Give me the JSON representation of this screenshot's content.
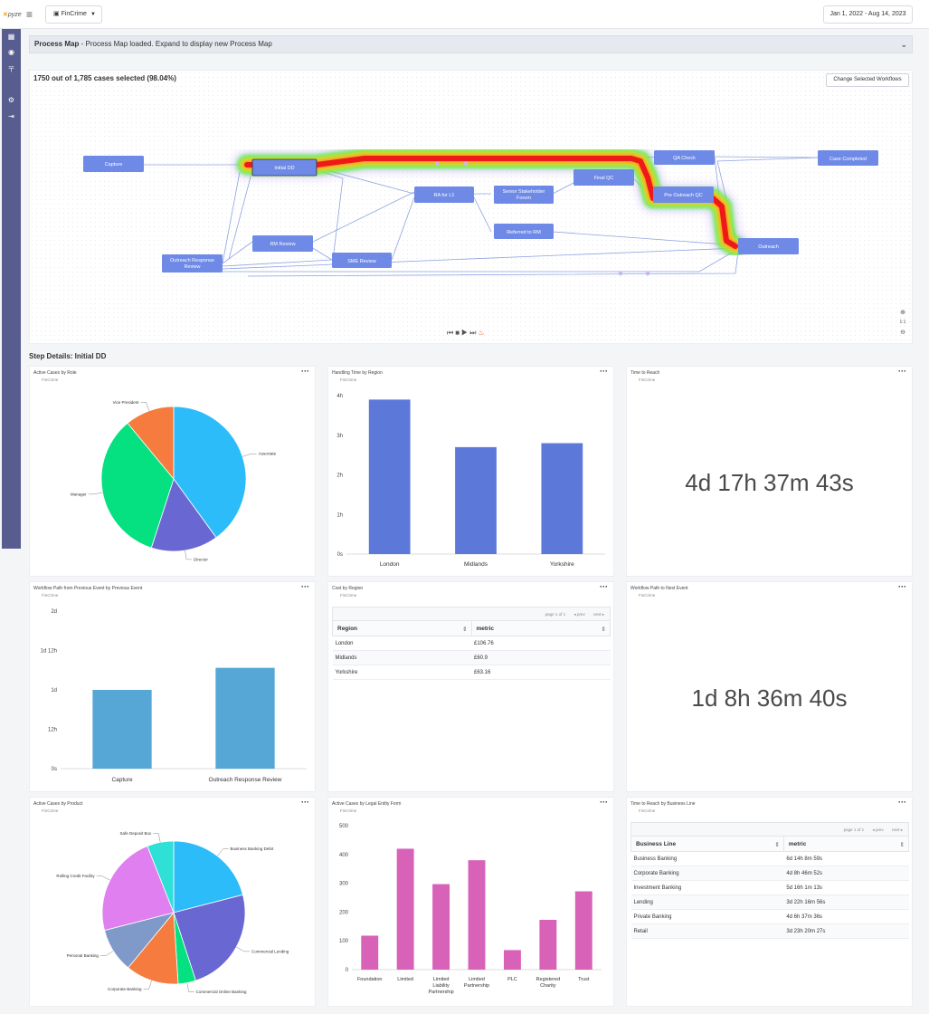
{
  "app": {
    "logo_main": "pyze",
    "workspace": "FinCrime",
    "date_range": "Jan 1, 2022 - Aug 14, 2023"
  },
  "process_map": {
    "title": "Process Map",
    "separator": "-",
    "subtitle": "Process Map loaded. Expand to display new Process Map",
    "selection_text": "1750 out of 1,785 cases selected (98.04%)",
    "change_button": "Change Selected Workflows",
    "zoom_label": "1:1",
    "nodes": [
      "Capture",
      "Initial DD",
      "QA Check",
      "Case Completed",
      "Final QC",
      "Senior Stakeholder Forum",
      "RA for L1",
      "Pre Outreach QC",
      "Referred to RM",
      "RM Review",
      "Outreach",
      "Outreach Response Review",
      "SME Review"
    ]
  },
  "step_details_title": "Step Details: Initial DD",
  "card_subtitle": "FinCrime",
  "cards": {
    "active_by_role": {
      "title": "Active Cases by Role",
      "chart_data": {
        "type": "pie",
        "slices": [
          {
            "label": "Associate",
            "value": 40,
            "color": "#2dbcfa"
          },
          {
            "label": "Director",
            "value": 15,
            "color": "#6967d1"
          },
          {
            "label": "Manager",
            "value": 34,
            "color": "#05e081"
          },
          {
            "label": "Vice President",
            "value": 11,
            "color": "#f57b3e"
          }
        ]
      }
    },
    "handling_by_region": {
      "title": "Handling Time by Region",
      "chart_data": {
        "type": "bar",
        "categories": [
          "London",
          "Midlands",
          "Yorkshire"
        ],
        "values": [
          3.9,
          2.7,
          2.8
        ],
        "y_ticks": [
          "0s",
          "1h",
          "2h",
          "3h",
          "4h"
        ],
        "ylim": [
          0,
          4
        ],
        "color": "#5c78d9"
      }
    },
    "time_to_reach": {
      "title": "Time to Reach",
      "value": "4d 17h 37m 43s"
    },
    "workflow_path_prev": {
      "title": "Workflow Path from Previous Event by Previous Event",
      "chart_data": {
        "type": "bar",
        "categories": [
          "Capture",
          "Outreach Response Review"
        ],
        "values": [
          1.0,
          1.28
        ],
        "y_ticks": [
          "0s",
          "12h",
          "1d",
          "1d 12h",
          "2d"
        ],
        "ylim": [
          0,
          2
        ],
        "color": "#56a6d6"
      }
    },
    "cost_by_region": {
      "title": "Cost by Region",
      "pager": {
        "page": "page 1 of 1",
        "prev": "prev",
        "next": "next"
      },
      "columns": [
        "Region",
        "metric"
      ],
      "rows": [
        [
          "London",
          "£106.76"
        ],
        [
          "Midlands",
          "£60.9"
        ],
        [
          "Yorkshire",
          "£63.16"
        ]
      ]
    },
    "workflow_path_next": {
      "title": "Workflow Path to Next Event",
      "value": "1d 8h 36m 40s"
    },
    "active_by_product": {
      "title": "Active Cases by Product",
      "chart_data": {
        "type": "pie",
        "slices": [
          {
            "label": "Business Banking Debit",
            "value": 21,
            "color": "#2dbcfa"
          },
          {
            "label": "Commercial Lending",
            "value": 24,
            "color": "#6967d1"
          },
          {
            "label": "Commercial Online Banking",
            "value": 4,
            "color": "#05e081"
          },
          {
            "label": "Corporate Banking",
            "value": 12,
            "color": "#f57b3e"
          },
          {
            "label": "Personal Banking",
            "value": 10,
            "color": "#7f9ac9"
          },
          {
            "label": "Rolling Credit Facility",
            "value": 23,
            "color": "#e07ff0"
          },
          {
            "label": "Safe Deposit Box",
            "value": 6,
            "color": "#2ee0d6"
          }
        ]
      }
    },
    "active_by_legal": {
      "title": "Active Cases by Legal Entity Form",
      "chart_data": {
        "type": "bar",
        "categories": [
          [
            "Foundation"
          ],
          [
            "Limited"
          ],
          [
            "Limited",
            "Liability",
            "Partnership"
          ],
          [
            "Limited",
            "Partnership"
          ],
          [
            "PLC"
          ],
          [
            "Registered",
            "Charity"
          ],
          [
            "Trust"
          ]
        ],
        "values": [
          118,
          420,
          297,
          380,
          68,
          173,
          272
        ],
        "y_ticks": [
          "0",
          "100",
          "200",
          "300",
          "400",
          "500"
        ],
        "ylim": [
          0,
          500
        ],
        "color": "#d962b9"
      }
    },
    "reach_by_business": {
      "title": "Time to Reach by Business Line",
      "pager": {
        "page": "page 1 of 1",
        "prev": "prev",
        "next": "next"
      },
      "columns": [
        "Business Line",
        "metric"
      ],
      "rows": [
        [
          "Business Banking",
          "6d 14h 8m 59s"
        ],
        [
          "Corporate Banking",
          "4d 8h 46m 52s"
        ],
        [
          "Investment Banking",
          "5d 16h 1m 13s"
        ],
        [
          "Lending",
          "3d 22h 16m 56s"
        ],
        [
          "Private Banking",
          "4d 6h 37m 36s"
        ],
        [
          "Retail",
          "3d 23h 20m 27s"
        ]
      ]
    }
  }
}
